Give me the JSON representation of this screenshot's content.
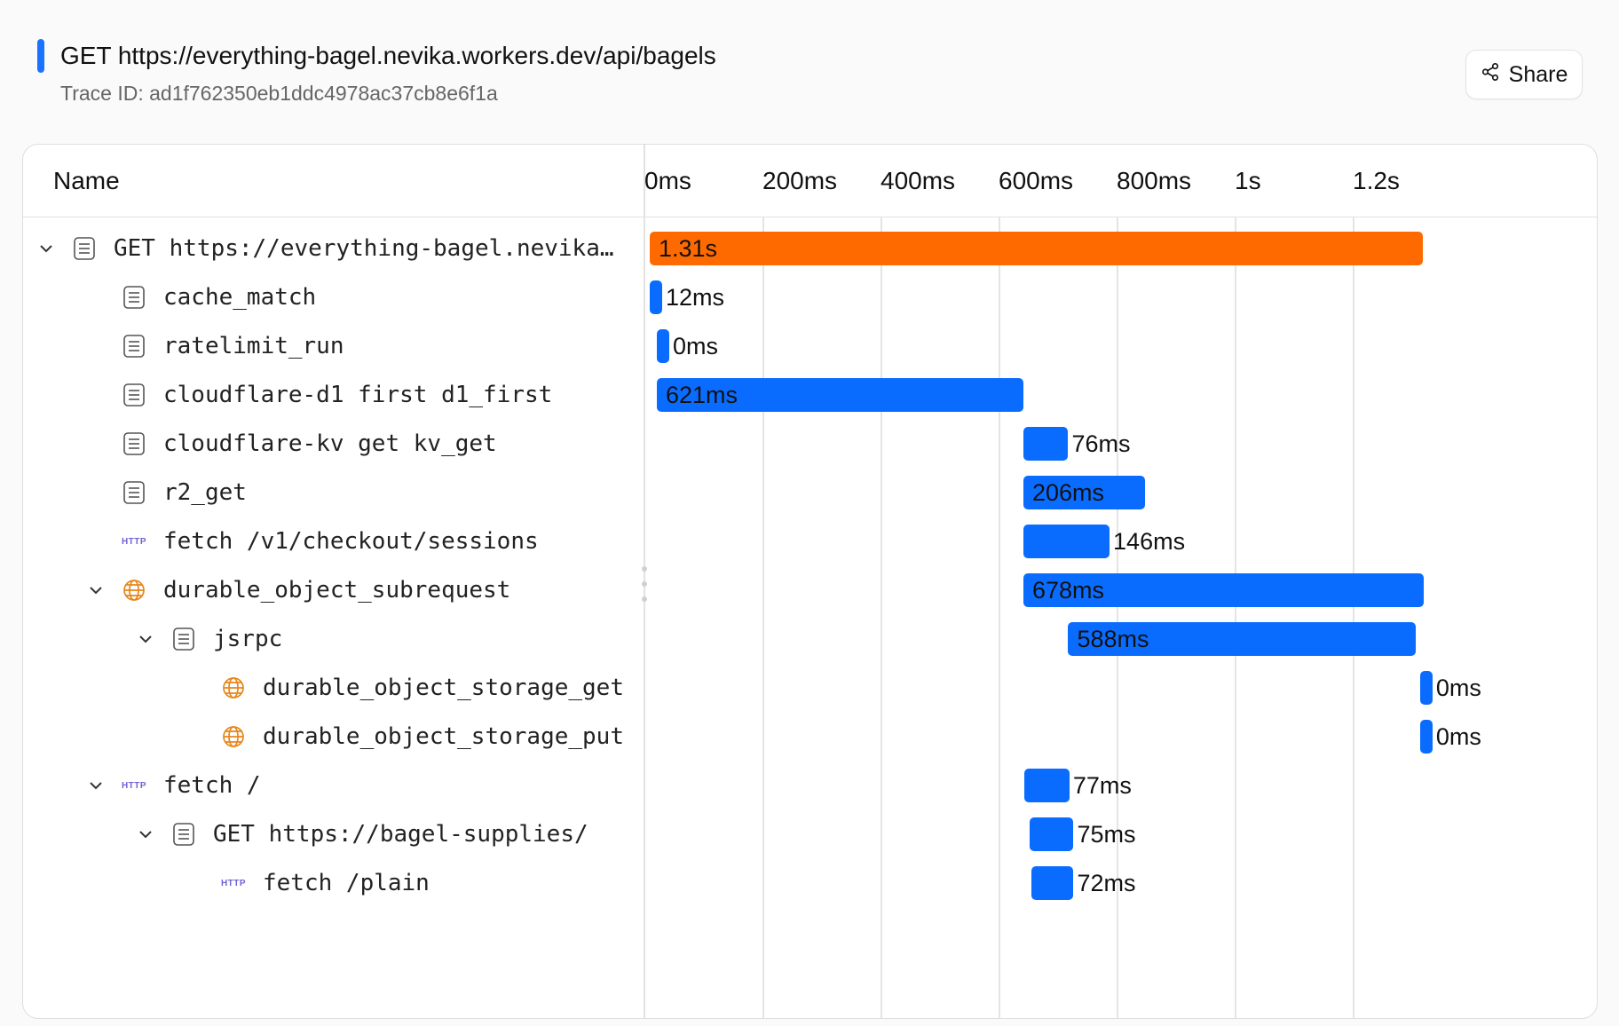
{
  "header": {
    "title": "GET https://everything-bagel.nevika.workers.dev/api/bagels",
    "trace_id": "Trace ID: ad1f762350eb1ddc4978ac37cb8e6f1a",
    "share_label": "Share",
    "accent_color": "#1a73ff"
  },
  "table": {
    "name_header": "Name",
    "ticks": [
      "0ms",
      "200ms",
      "400ms",
      "600ms",
      "800ms",
      "1s",
      "1.2s"
    ],
    "tick_values_ms": [
      0,
      200,
      400,
      600,
      800,
      1000,
      1200
    ]
  },
  "colors": {
    "root_bar": "#ff6a00",
    "span_bar": "#0a6cff",
    "http_icon": "#6f62d6",
    "globe_icon": "#e8861a"
  },
  "spans": [
    {
      "name": "GET https://everything-bagel.nevika.workers.dev/api/bagels",
      "display_name": "GET https://everything-bagel.nevika…",
      "duration": "1.31s",
      "depth": 0,
      "icon": "document-icon",
      "expandable": true,
      "start_ms": 0,
      "duration_ms": 1310,
      "root": true
    },
    {
      "name": "cache_match",
      "duration": "12ms",
      "depth": 1,
      "icon": "document-icon",
      "expandable": false,
      "start_ms": 0,
      "duration_ms": 12
    },
    {
      "name": "ratelimit_run",
      "duration": "0ms",
      "depth": 1,
      "icon": "document-icon",
      "expandable": false,
      "start_ms": 12,
      "duration_ms": 0
    },
    {
      "name": "cloudflare-d1 first d1_first",
      "duration": "621ms",
      "depth": 1,
      "icon": "document-icon",
      "expandable": false,
      "start_ms": 12,
      "duration_ms": 621
    },
    {
      "name": "cloudflare-kv get kv_get",
      "duration": "76ms",
      "depth": 1,
      "icon": "document-icon",
      "expandable": false,
      "start_ms": 633,
      "duration_ms": 76
    },
    {
      "name": "r2_get",
      "duration": "206ms",
      "depth": 1,
      "icon": "document-icon",
      "expandable": false,
      "start_ms": 633,
      "duration_ms": 206
    },
    {
      "name": "fetch /v1/checkout/sessions",
      "duration": "146ms",
      "depth": 1,
      "icon": "http-icon",
      "expandable": false,
      "start_ms": 633,
      "duration_ms": 146
    },
    {
      "name": "durable_object_subrequest",
      "duration": "678ms",
      "depth": 1,
      "icon": "globe-icon",
      "expandable": true,
      "start_ms": 633,
      "duration_ms": 678
    },
    {
      "name": "jsrpc",
      "duration": "588ms",
      "depth": 2,
      "icon": "document-icon",
      "expandable": true,
      "start_ms": 709,
      "duration_ms": 588
    },
    {
      "name": "durable_object_storage_get",
      "duration": "0ms",
      "depth": 3,
      "icon": "globe-icon",
      "expandable": false,
      "start_ms": 1305,
      "duration_ms": 0
    },
    {
      "name": "durable_object_storage_put",
      "duration": "0ms",
      "depth": 3,
      "icon": "globe-icon",
      "expandable": false,
      "start_ms": 1305,
      "duration_ms": 0
    },
    {
      "name": "fetch /",
      "duration": "77ms",
      "depth": 1,
      "icon": "http-icon",
      "expandable": true,
      "start_ms": 634,
      "duration_ms": 77
    },
    {
      "name": "GET https://bagel-supplies/",
      "duration": "75ms",
      "depth": 2,
      "icon": "document-icon",
      "expandable": true,
      "start_ms": 643,
      "duration_ms": 75
    },
    {
      "name": "fetch /plain",
      "duration": "72ms",
      "depth": 3,
      "icon": "http-icon",
      "expandable": false,
      "start_ms": 646,
      "duration_ms": 72
    }
  ],
  "http_icon_text": "HTTP"
}
